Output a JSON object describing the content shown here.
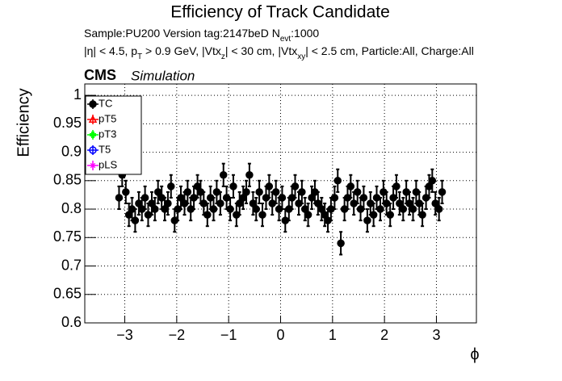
{
  "chart_data": {
    "type": "scatter",
    "title": "Efficiency of Track Candidate",
    "subtitle": [
      "Sample:PU200   Version tag:2147beD  N",
      "evt",
      ":1000"
    ],
    "selection": [
      "|η| < 4.5, p",
      "T",
      " > 0.9 GeV, |Vtx",
      "z",
      "| < 30 cm, |Vtx",
      "xy",
      "| < 2.5 cm, Particle:All, Charge:All"
    ],
    "experiment": "CMS",
    "experiment_note": "Simulation",
    "xlabel": "ϕ",
    "ylabel": "Efficiency",
    "xlim": [
      -3.77,
      3.77
    ],
    "ylim": [
      0.6,
      1.02
    ],
    "xticks": [
      {
        "value": -3,
        "label": "−3"
      },
      {
        "value": -2,
        "label": "−2"
      },
      {
        "value": -1,
        "label": "−1"
      },
      0,
      1,
      2,
      3
    ],
    "yticks": [
      0.6,
      0.65,
      0.7,
      0.75,
      0.8,
      0.85,
      0.9,
      0.95,
      1
    ],
    "grid": true,
    "legend": "upper-left",
    "series": [
      {
        "name": "TC",
        "color": "#000000",
        "marker": "circle",
        "error": 0.02,
        "x": [
          -3.11,
          -3.05,
          -2.98,
          -2.92,
          -2.86,
          -2.8,
          -2.73,
          -2.67,
          -2.61,
          -2.55,
          -2.48,
          -2.42,
          -2.36,
          -2.29,
          -2.23,
          -2.17,
          -2.11,
          -2.04,
          -1.98,
          -1.92,
          -1.85,
          -1.79,
          -1.73,
          -1.67,
          -1.6,
          -1.54,
          -1.48,
          -1.41,
          -1.35,
          -1.29,
          -1.23,
          -1.16,
          -1.1,
          -1.04,
          -0.97,
          -0.91,
          -0.85,
          -0.79,
          -0.72,
          -0.66,
          -0.6,
          -0.53,
          -0.47,
          -0.41,
          -0.35,
          -0.28,
          -0.22,
          -0.16,
          -0.09,
          -0.03,
          0.03,
          0.09,
          0.16,
          0.22,
          0.28,
          0.35,
          0.41,
          0.47,
          0.53,
          0.6,
          0.66,
          0.72,
          0.79,
          0.85,
          0.91,
          0.97,
          1.04,
          1.1,
          1.16,
          1.23,
          1.29,
          1.35,
          1.41,
          1.48,
          1.54,
          1.6,
          1.67,
          1.73,
          1.79,
          1.85,
          1.92,
          1.98,
          2.04,
          2.11,
          2.17,
          2.23,
          2.29,
          2.36,
          2.42,
          2.48,
          2.55,
          2.61,
          2.67,
          2.73,
          2.8,
          2.86,
          2.92,
          2.98,
          3.05,
          3.11
        ],
        "values": [
          0.82,
          0.86,
          0.83,
          0.79,
          0.8,
          0.78,
          0.81,
          0.8,
          0.82,
          0.79,
          0.81,
          0.8,
          0.83,
          0.82,
          0.8,
          0.81,
          0.84,
          0.78,
          0.8,
          0.82,
          0.81,
          0.83,
          0.8,
          0.82,
          0.84,
          0.83,
          0.81,
          0.79,
          0.82,
          0.8,
          0.83,
          0.81,
          0.86,
          0.82,
          0.8,
          0.84,
          0.79,
          0.81,
          0.82,
          0.83,
          0.86,
          0.81,
          0.8,
          0.83,
          0.79,
          0.82,
          0.84,
          0.81,
          0.83,
          0.8,
          0.82,
          0.78,
          0.8,
          0.82,
          0.84,
          0.81,
          0.83,
          0.8,
          0.79,
          0.82,
          0.83,
          0.81,
          0.8,
          0.79,
          0.78,
          0.8,
          0.82,
          0.85,
          0.74,
          0.8,
          0.82,
          0.84,
          0.81,
          0.83,
          0.8,
          0.82,
          0.78,
          0.81,
          0.79,
          0.82,
          0.8,
          0.83,
          0.81,
          0.79,
          0.82,
          0.84,
          0.81,
          0.8,
          0.83,
          0.81,
          0.8,
          0.83,
          0.81,
          0.79,
          0.82,
          0.84,
          0.85,
          0.81,
          0.8,
          0.83
        ]
      },
      {
        "name": "pT5",
        "color": "#ff0000",
        "marker": "triangle",
        "x": [],
        "values": []
      },
      {
        "name": "pT3",
        "color": "#00ff00",
        "marker": "cross",
        "x": [],
        "values": []
      },
      {
        "name": "T5",
        "color": "#0000ff",
        "marker": "circle-open",
        "x": [],
        "values": []
      },
      {
        "name": "pLS",
        "color": "#ff00ff",
        "marker": "star",
        "x": [],
        "values": []
      }
    ]
  }
}
